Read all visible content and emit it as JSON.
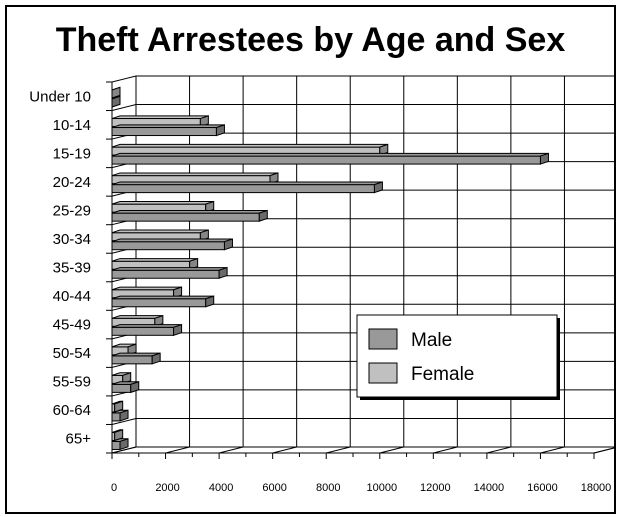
{
  "chart_data": {
    "type": "bar",
    "orientation": "horizontal",
    "title": "Theft Arrestees by Age and Sex",
    "categories": [
      "Under 10",
      "10-14",
      "15-19",
      "20-24",
      "25-29",
      "30-34",
      "35-39",
      "40-44",
      "45-49",
      "50-54",
      "55-59",
      "60-64",
      "65+"
    ],
    "series": [
      {
        "name": "Male",
        "color": "#999999",
        "values": [
          0,
          3900,
          16000,
          9800,
          5500,
          4200,
          4000,
          3500,
          2300,
          1500,
          700,
          300,
          300
        ]
      },
      {
        "name": "Female",
        "color": "#c0c0c0",
        "values": [
          0,
          3300,
          10000,
          5900,
          3500,
          3300,
          2900,
          2300,
          1600,
          600,
          400,
          100,
          100
        ]
      }
    ],
    "xlim": [
      0,
      18000
    ],
    "x_ticks": [
      "0",
      "2000",
      "4000",
      "6000",
      "8000",
      "10000",
      "12000",
      "14000",
      "16000",
      "18000"
    ],
    "grid": true,
    "legend_position": "lower-right",
    "three_d": true
  }
}
